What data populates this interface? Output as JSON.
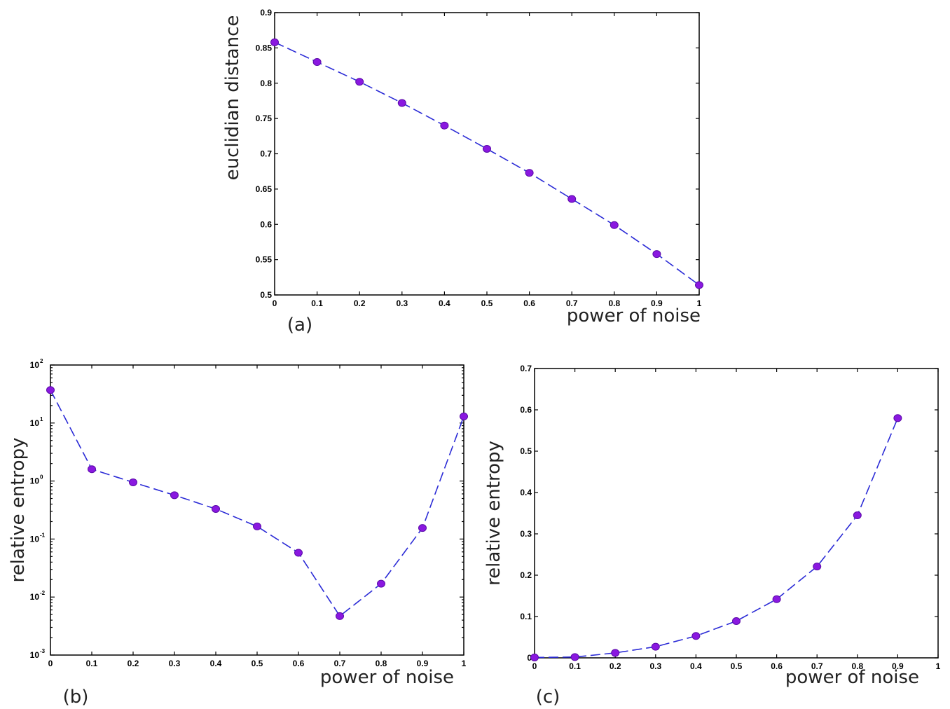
{
  "chart_data": [
    {
      "id": "a",
      "type": "line",
      "panel_label": "(a)",
      "xlabel": "power of noise",
      "ylabel": "euclidian distance",
      "xlim": [
        0,
        1
      ],
      "ylim": [
        0.5,
        0.9
      ],
      "yscale": "linear",
      "x_ticks": [
        "0",
        "0.1",
        "0.2",
        "0.3",
        "0.4",
        "0.5",
        "0.6",
        "0.7",
        "0.8",
        "0.9",
        "1"
      ],
      "y_ticks": [
        "0.5",
        "0.55",
        "0.6",
        "0.65",
        "0.7",
        "0.75",
        "0.8",
        "0.85",
        "0.9"
      ],
      "x": [
        0,
        0.1,
        0.2,
        0.3,
        0.4,
        0.5,
        0.6,
        0.7,
        0.8,
        0.9,
        1.0
      ],
      "y": [
        0.858,
        0.83,
        0.802,
        0.772,
        0.74,
        0.707,
        0.673,
        0.636,
        0.599,
        0.558,
        0.514
      ],
      "line_style": "dashed",
      "line_color": "#2b2bd6",
      "marker_color": "#8a18e0"
    },
    {
      "id": "b",
      "type": "line",
      "panel_label": "(b)",
      "xlabel": "power of noise",
      "ylabel": "relative entropy",
      "xlim": [
        0,
        1
      ],
      "ylim": [
        0.001,
        100
      ],
      "yscale": "log",
      "x_ticks": [
        "0",
        "0.1",
        "0.2",
        "0.3",
        "0.4",
        "0.5",
        "0.6",
        "0.7",
        "0.8",
        "0.9",
        "1"
      ],
      "y_ticks": [
        {
          "base": "10",
          "exp": "-3"
        },
        {
          "base": "10",
          "exp": "-2"
        },
        {
          "base": "10",
          "exp": "-1"
        },
        {
          "base": "10",
          "exp": "0"
        },
        {
          "base": "10",
          "exp": "1"
        },
        {
          "base": "10",
          "exp": "2"
        }
      ],
      "x": [
        0,
        0.1,
        0.2,
        0.3,
        0.4,
        0.5,
        0.6,
        0.7,
        0.8,
        0.9,
        1.0
      ],
      "y": [
        37,
        1.6,
        0.95,
        0.57,
        0.33,
        0.165,
        0.058,
        0.0047,
        0.017,
        0.155,
        13
      ],
      "line_style": "dashed",
      "line_color": "#2b2bd6",
      "marker_color": "#8a18e0"
    },
    {
      "id": "c",
      "type": "line",
      "panel_label": "(c)",
      "xlabel": "power of noise",
      "ylabel": "relative entropy",
      "xlim": [
        0,
        1
      ],
      "ylim": [
        0,
        0.7
      ],
      "yscale": "linear",
      "x_ticks": [
        "0",
        "0.1",
        "0.2",
        "0.3",
        "0.4",
        "0.5",
        "0.6",
        "0.7",
        "0.8",
        "0.9",
        "1"
      ],
      "y_ticks": [
        "0",
        "0.1",
        "0.2",
        "0.3",
        "0.4",
        "0.5",
        "0.6",
        "0.7"
      ],
      "x": [
        0,
        0.1,
        0.2,
        0.3,
        0.4,
        0.5,
        0.6,
        0.7,
        0.8,
        0.9
      ],
      "y": [
        0.001,
        0.002,
        0.012,
        0.027,
        0.053,
        0.089,
        0.142,
        0.221,
        0.345,
        0.58
      ],
      "line_style": "dashed",
      "line_color": "#2b2bd6",
      "marker_color": "#8a18e0"
    }
  ]
}
